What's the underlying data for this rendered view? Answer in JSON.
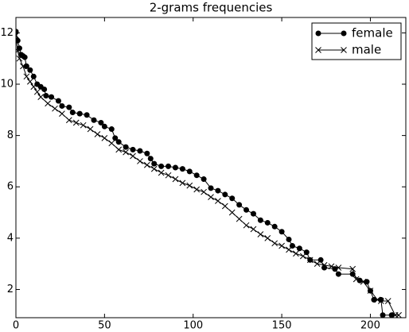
{
  "chart_data": {
    "type": "line",
    "title": "2-grams frequencies",
    "xlim": [
      0,
      220
    ],
    "xticks": [
      0,
      50,
      100,
      150,
      200
    ],
    "ylim": [
      0.9,
      12.6
    ],
    "yticks": [
      2,
      4,
      6,
      8,
      10,
      12
    ],
    "grid": false,
    "legend": "upper right",
    "series": [
      {
        "name": "female",
        "color": "#000000",
        "marker": "circle",
        "x": [
          0,
          1,
          2,
          3,
          4,
          5,
          6,
          8,
          10,
          12,
          14,
          16,
          17,
          20,
          24,
          26,
          30,
          32,
          36,
          40,
          44,
          48,
          50,
          54,
          56,
          58,
          62,
          66,
          70,
          74,
          76,
          78,
          82,
          86,
          90,
          94,
          98,
          102,
          106,
          110,
          114,
          118,
          122,
          126,
          130,
          134,
          138,
          142,
          146,
          150,
          154,
          156,
          160,
          164,
          166,
          172,
          174,
          180,
          182,
          190,
          194,
          198,
          200,
          202,
          206,
          207,
          212
        ],
        "values": [
          12.05,
          11.7,
          11.4,
          11.15,
          11.1,
          11.05,
          10.7,
          10.55,
          10.3,
          10.0,
          9.9,
          9.8,
          9.55,
          9.5,
          9.35,
          9.15,
          9.1,
          8.9,
          8.85,
          8.8,
          8.6,
          8.5,
          8.35,
          8.25,
          7.9,
          7.75,
          7.55,
          7.45,
          7.4,
          7.3,
          7.1,
          6.9,
          6.8,
          6.8,
          6.75,
          6.7,
          6.6,
          6.45,
          6.3,
          5.95,
          5.85,
          5.7,
          5.55,
          5.3,
          5.1,
          4.95,
          4.7,
          4.6,
          4.45,
          4.25,
          3.95,
          3.7,
          3.6,
          3.45,
          3.15,
          3.15,
          2.85,
          2.8,
          2.6,
          2.6,
          2.35,
          2.3,
          1.95,
          1.6,
          1.6,
          1.0,
          1.0
        ]
      },
      {
        "name": "male",
        "color": "#000000",
        "marker": "x",
        "x": [
          0,
          1,
          2,
          4,
          6,
          8,
          10,
          12,
          14,
          18,
          22,
          26,
          30,
          34,
          38,
          42,
          46,
          50,
          54,
          58,
          62,
          66,
          70,
          74,
          78,
          82,
          86,
          90,
          94,
          98,
          102,
          106,
          110,
          114,
          118,
          122,
          126,
          130,
          134,
          138,
          142,
          146,
          150,
          154,
          158,
          162,
          166,
          170,
          174,
          178,
          182,
          190,
          192,
          196,
          200,
          204,
          206,
          210,
          214,
          216
        ],
        "values": [
          11.9,
          11.3,
          11.0,
          10.7,
          10.3,
          10.1,
          9.9,
          9.7,
          9.5,
          9.25,
          9.05,
          8.85,
          8.6,
          8.5,
          8.4,
          8.25,
          8.05,
          7.9,
          7.7,
          7.45,
          7.35,
          7.2,
          7.0,
          6.85,
          6.7,
          6.55,
          6.45,
          6.3,
          6.15,
          6.05,
          5.9,
          5.8,
          5.6,
          5.45,
          5.25,
          5.0,
          4.75,
          4.5,
          4.35,
          4.15,
          4.0,
          3.8,
          3.7,
          3.55,
          3.4,
          3.3,
          3.15,
          3.0,
          2.95,
          2.9,
          2.85,
          2.8,
          2.4,
          2.3,
          1.95,
          1.6,
          1.55,
          1.55,
          1.0,
          1.0
        ]
      }
    ]
  }
}
